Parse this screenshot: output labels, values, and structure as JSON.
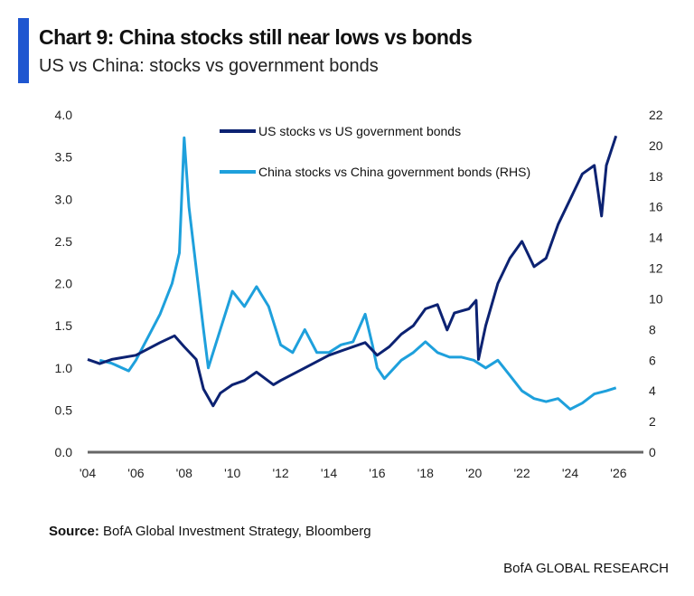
{
  "header": {
    "title": "Chart 9: China stocks still near lows vs bonds",
    "subtitle": "US vs China: stocks vs government bonds"
  },
  "footer": {
    "source_label": "Source:",
    "source_text": "BofA Global Investment Strategy, Bloomberg",
    "brand": "BofA GLOBAL RESEARCH"
  },
  "colors": {
    "accent": "#1f56d0",
    "us": "#0c2272",
    "china": "#1ea0dc"
  },
  "chart_data": {
    "type": "line",
    "xlim": [
      2004,
      2027
    ],
    "x_ticks": [
      {
        "v": 2004,
        "label": "'04"
      },
      {
        "v": 2006,
        "label": "'06"
      },
      {
        "v": 2008,
        "label": "'08"
      },
      {
        "v": 2010,
        "label": "'10"
      },
      {
        "v": 2012,
        "label": "'12"
      },
      {
        "v": 2014,
        "label": "'14"
      },
      {
        "v": 2016,
        "label": "'16"
      },
      {
        "v": 2018,
        "label": "'18"
      },
      {
        "v": 2020,
        "label": "'20"
      },
      {
        "v": 2022,
        "label": "'22"
      },
      {
        "v": 2024,
        "label": "'24"
      },
      {
        "v": 2026,
        "label": "'26"
      }
    ],
    "ylim_left": [
      0,
      4
    ],
    "y_ticks_left": [
      "0.0",
      "0.5",
      "1.0",
      "1.5",
      "2.0",
      "2.5",
      "3.0",
      "3.5",
      "4.0"
    ],
    "ylim_right": [
      0,
      22
    ],
    "y_ticks_right": [
      "0",
      "2",
      "4",
      "6",
      "8",
      "10",
      "12",
      "14",
      "16",
      "18",
      "20",
      "22"
    ],
    "legend_position": "top-center",
    "series": [
      {
        "name": "US stocks vs US government bonds",
        "axis": "left",
        "color": "#0c2272",
        "x": [
          2004,
          2004.5,
          2005,
          2006,
          2007,
          2007.6,
          2008,
          2008.5,
          2008.8,
          2009.2,
          2009.5,
          2010,
          2010.5,
          2011,
          2011.7,
          2012,
          2013,
          2014,
          2015,
          2015.5,
          2016,
          2016.5,
          2017,
          2017.5,
          2018,
          2018.5,
          2018.9,
          2019.2,
          2019.8,
          2020.1,
          2020.2,
          2020.5,
          2021,
          2021.5,
          2022,
          2022.5,
          2023,
          2023.5,
          2024,
          2024.5,
          2025,
          2025.3,
          2025.5,
          2025.9
        ],
        "y": [
          1.1,
          1.05,
          1.1,
          1.15,
          1.3,
          1.38,
          1.25,
          1.1,
          0.75,
          0.55,
          0.7,
          0.8,
          0.85,
          0.95,
          0.8,
          0.85,
          1.0,
          1.15,
          1.25,
          1.3,
          1.15,
          1.25,
          1.4,
          1.5,
          1.7,
          1.75,
          1.45,
          1.65,
          1.7,
          1.8,
          1.1,
          1.5,
          2.0,
          2.3,
          2.5,
          2.2,
          2.3,
          2.7,
          3.0,
          3.3,
          3.4,
          2.8,
          3.4,
          3.75
        ]
      },
      {
        "name": "China stocks vs China government bonds (RHS)",
        "axis": "right",
        "color": "#1ea0dc",
        "x": [
          2004.5,
          2005,
          2005.7,
          2006,
          2006.5,
          2007,
          2007.5,
          2007.8,
          2008,
          2008.2,
          2008.5,
          2008.8,
          2009,
          2009.5,
          2010,
          2010.5,
          2011,
          2011.5,
          2012,
          2012.5,
          2013,
          2013.5,
          2014,
          2014.5,
          2015,
          2015.5,
          2015.8,
          2016,
          2016.3,
          2017,
          2017.5,
          2018,
          2018.5,
          2019,
          2019.5,
          2020,
          2020.5,
          2021,
          2021.5,
          2022,
          2022.5,
          2023,
          2023.5,
          2024,
          2024.5,
          2025,
          2025.5,
          2025.9
        ],
        "y": [
          6,
          5.8,
          5.3,
          6,
          7.5,
          9,
          11,
          13,
          20.5,
          16,
          12,
          8,
          5.5,
          8,
          10.5,
          9.5,
          10.8,
          9.5,
          7,
          6.5,
          8,
          6.5,
          6.5,
          7,
          7.2,
          9,
          7,
          5.5,
          4.8,
          6,
          6.5,
          7.2,
          6.5,
          6.2,
          6.2,
          6,
          5.5,
          6,
          5,
          4,
          3.5,
          3.3,
          3.5,
          2.8,
          3.2,
          3.8,
          4,
          4.2
        ]
      }
    ]
  }
}
